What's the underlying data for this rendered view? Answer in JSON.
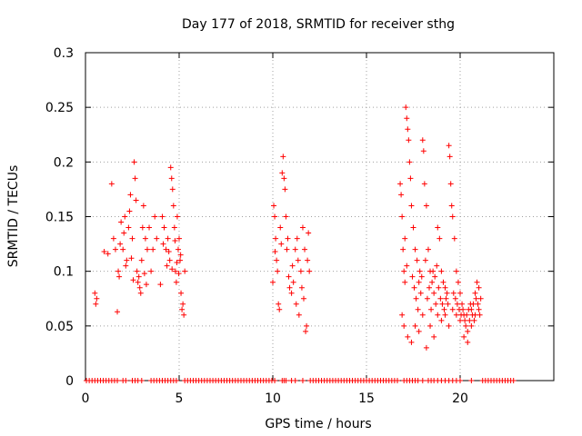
{
  "chart_data": {
    "type": "scatter",
    "title": "Day 177 of 2018, SRMTID for receiver sthg",
    "xlabel": "GPS time / hours",
    "ylabel": "SRMTID / TECUs",
    "xlim": [
      0,
      25
    ],
    "ylim": [
      0,
      0.3
    ],
    "grid": true,
    "marker": "+",
    "color": "#ff0000",
    "x_ticks": [
      0,
      5,
      10,
      15,
      20
    ],
    "x_tick_labels": [
      "0",
      "5",
      "10",
      "15",
      "20"
    ],
    "y_ticks": [
      0,
      0.05,
      0.1,
      0.15,
      0.2,
      0.25,
      0.3
    ],
    "y_tick_labels": [
      "0",
      "0.05",
      "0.1",
      "0.15",
      "0.2",
      "0.25",
      "0.3"
    ],
    "series": [
      {
        "name": "SRMTID",
        "points": [
          [
            0.5,
            0.08
          ],
          [
            0.55,
            0.07
          ],
          [
            0.6,
            0.075
          ],
          [
            1.0,
            0.118
          ],
          [
            1.2,
            0.116
          ],
          [
            1.4,
            0.18
          ],
          [
            1.5,
            0.13
          ],
          [
            1.6,
            0.12
          ],
          [
            1.7,
            0.063
          ],
          [
            1.75,
            0.1
          ],
          [
            1.8,
            0.095
          ],
          [
            1.9,
            0.145
          ],
          [
            2.0,
            0.12
          ],
          [
            2.1,
            0.15
          ],
          [
            2.2,
            0.11
          ],
          [
            2.3,
            0.14
          ],
          [
            2.4,
            0.17
          ],
          [
            2.5,
            0.13
          ],
          [
            2.6,
            0.2
          ],
          [
            2.65,
            0.185
          ],
          [
            2.7,
            0.165
          ],
          [
            2.75,
            0.1
          ],
          [
            2.8,
            0.09
          ],
          [
            2.85,
            0.095
          ],
          [
            2.9,
            0.085
          ],
          [
            2.95,
            0.08
          ],
          [
            3.0,
            0.11
          ],
          [
            3.05,
            0.14
          ],
          [
            3.1,
            0.16
          ],
          [
            3.2,
            0.13
          ],
          [
            3.3,
            0.12
          ],
          [
            3.4,
            0.14
          ],
          [
            3.5,
            0.1
          ],
          [
            3.6,
            0.12
          ],
          [
            3.7,
            0.15
          ],
          [
            3.8,
            0.13
          ],
          [
            1.85,
            0.125
          ],
          [
            2.05,
            0.135
          ],
          [
            2.15,
            0.105
          ],
          [
            2.35,
            0.155
          ],
          [
            2.45,
            0.112
          ],
          [
            2.55,
            0.092
          ],
          [
            3.15,
            0.098
          ],
          [
            3.25,
            0.088
          ],
          [
            4.0,
            0.088
          ],
          [
            4.1,
            0.15
          ],
          [
            4.2,
            0.14
          ],
          [
            4.3,
            0.12
          ],
          [
            4.4,
            0.13
          ],
          [
            4.5,
            0.11
          ],
          [
            4.55,
            0.195
          ],
          [
            4.6,
            0.185
          ],
          [
            4.65,
            0.175
          ],
          [
            4.7,
            0.16
          ],
          [
            4.75,
            0.14
          ],
          [
            4.8,
            0.1
          ],
          [
            4.85,
            0.09
          ],
          [
            4.9,
            0.15
          ],
          [
            4.95,
            0.12
          ],
          [
            5.0,
            0.13
          ],
          [
            5.05,
            0.11
          ],
          [
            5.1,
            0.08
          ],
          [
            5.15,
            0.065
          ],
          [
            5.2,
            0.07
          ],
          [
            5.25,
            0.06
          ],
          [
            5.3,
            0.1
          ],
          [
            4.15,
            0.125
          ],
          [
            4.35,
            0.105
          ],
          [
            4.45,
            0.118
          ],
          [
            4.62,
            0.102
          ],
          [
            4.78,
            0.128
          ],
          [
            4.88,
            0.108
          ],
          [
            4.98,
            0.098
          ],
          [
            5.08,
            0.115
          ],
          [
            10.0,
            0.09
          ],
          [
            10.05,
            0.16
          ],
          [
            10.1,
            0.15
          ],
          [
            10.15,
            0.13
          ],
          [
            10.2,
            0.11
          ],
          [
            10.25,
            0.1
          ],
          [
            10.3,
            0.07
          ],
          [
            10.35,
            0.065
          ],
          [
            10.4,
            0.14
          ],
          [
            10.5,
            0.19
          ],
          [
            10.55,
            0.205
          ],
          [
            10.6,
            0.185
          ],
          [
            10.65,
            0.175
          ],
          [
            10.7,
            0.15
          ],
          [
            10.75,
            0.12
          ],
          [
            10.8,
            0.13
          ],
          [
            10.9,
            0.085
          ],
          [
            11.0,
            0.08
          ],
          [
            11.1,
            0.09
          ],
          [
            11.2,
            0.12
          ],
          [
            11.3,
            0.13
          ],
          [
            11.4,
            0.06
          ],
          [
            11.5,
            0.1
          ],
          [
            11.6,
            0.14
          ],
          [
            11.7,
            0.12
          ],
          [
            11.75,
            0.045
          ],
          [
            11.8,
            0.05
          ],
          [
            11.85,
            0.11
          ],
          [
            11.9,
            0.135
          ],
          [
            11.95,
            0.1
          ],
          [
            10.12,
            0.118
          ],
          [
            10.45,
            0.125
          ],
          [
            10.85,
            0.095
          ],
          [
            11.05,
            0.105
          ],
          [
            11.25,
            0.07
          ],
          [
            11.35,
            0.11
          ],
          [
            11.55,
            0.085
          ],
          [
            11.65,
            0.075
          ],
          [
            16.8,
            0.18
          ],
          [
            16.85,
            0.17
          ],
          [
            16.9,
            0.15
          ],
          [
            16.95,
            0.12
          ],
          [
            17.0,
            0.1
          ],
          [
            17.05,
            0.09
          ],
          [
            17.1,
            0.25
          ],
          [
            17.15,
            0.24
          ],
          [
            17.2,
            0.23
          ],
          [
            17.25,
            0.22
          ],
          [
            17.3,
            0.2
          ],
          [
            17.35,
            0.185
          ],
          [
            17.4,
            0.16
          ],
          [
            17.5,
            0.14
          ],
          [
            17.6,
            0.12
          ],
          [
            17.7,
            0.11
          ],
          [
            17.8,
            0.09
          ],
          [
            17.9,
            0.08
          ],
          [
            18.0,
            0.22
          ],
          [
            18.05,
            0.21
          ],
          [
            18.1,
            0.18
          ],
          [
            18.2,
            0.16
          ],
          [
            18.3,
            0.12
          ],
          [
            18.4,
            0.1
          ],
          [
            18.5,
            0.09
          ],
          [
            18.6,
            0.08
          ],
          [
            18.7,
            0.07
          ],
          [
            18.8,
            0.14
          ],
          [
            18.9,
            0.13
          ],
          [
            19.0,
            0.1
          ],
          [
            19.1,
            0.09
          ],
          [
            19.2,
            0.085
          ],
          [
            19.3,
            0.08
          ],
          [
            19.4,
            0.215
          ],
          [
            19.45,
            0.205
          ],
          [
            19.5,
            0.18
          ],
          [
            19.55,
            0.16
          ],
          [
            19.6,
            0.15
          ],
          [
            19.7,
            0.13
          ],
          [
            19.8,
            0.1
          ],
          [
            19.9,
            0.09
          ],
          [
            20.0,
            0.08
          ],
          [
            20.1,
            0.07
          ],
          [
            20.2,
            0.06
          ],
          [
            20.3,
            0.05
          ],
          [
            20.4,
            0.045
          ],
          [
            20.5,
            0.055
          ],
          [
            20.6,
            0.065
          ],
          [
            20.7,
            0.07
          ],
          [
            20.8,
            0.08
          ],
          [
            20.9,
            0.09
          ],
          [
            21.0,
            0.085
          ],
          [
            21.1,
            0.075
          ],
          [
            16.9,
            0.06
          ],
          [
            17.0,
            0.05
          ],
          [
            17.2,
            0.04
          ],
          [
            17.4,
            0.035
          ],
          [
            17.6,
            0.05
          ],
          [
            17.8,
            0.045
          ],
          [
            18.0,
            0.06
          ],
          [
            18.2,
            0.03
          ],
          [
            18.4,
            0.05
          ],
          [
            18.6,
            0.04
          ],
          [
            18.8,
            0.06
          ],
          [
            19.0,
            0.055
          ],
          [
            19.2,
            0.06
          ],
          [
            19.4,
            0.05
          ],
          [
            19.6,
            0.065
          ],
          [
            19.8,
            0.06
          ],
          [
            20.0,
            0.055
          ],
          [
            20.2,
            0.04
          ],
          [
            20.4,
            0.035
          ],
          [
            20.6,
            0.05
          ],
          [
            20.8,
            0.06
          ],
          [
            21.0,
            0.065
          ],
          [
            17.05,
            0.13
          ],
          [
            17.15,
            0.105
          ],
          [
            17.45,
            0.095
          ],
          [
            17.55,
            0.085
          ],
          [
            17.65,
            0.075
          ],
          [
            17.75,
            0.065
          ],
          [
            17.85,
            0.1
          ],
          [
            17.95,
            0.095
          ],
          [
            18.15,
            0.11
          ],
          [
            18.25,
            0.075
          ],
          [
            18.35,
            0.085
          ],
          [
            18.45,
            0.065
          ],
          [
            18.55,
            0.1
          ],
          [
            18.65,
            0.095
          ],
          [
            18.75,
            0.105
          ],
          [
            18.85,
            0.085
          ],
          [
            18.95,
            0.075
          ],
          [
            19.05,
            0.07
          ],
          [
            19.15,
            0.065
          ],
          [
            19.25,
            0.075
          ],
          [
            19.35,
            0.07
          ],
          [
            19.65,
            0.08
          ],
          [
            19.75,
            0.075
          ],
          [
            19.85,
            0.07
          ],
          [
            19.95,
            0.065
          ],
          [
            20.05,
            0.06
          ],
          [
            20.15,
            0.065
          ],
          [
            20.25,
            0.055
          ],
          [
            20.35,
            0.06
          ],
          [
            20.45,
            0.065
          ],
          [
            20.55,
            0.07
          ],
          [
            20.65,
            0.06
          ],
          [
            20.75,
            0.055
          ],
          [
            20.85,
            0.075
          ],
          [
            20.95,
            0.07
          ],
          [
            21.05,
            0.06
          ]
        ]
      }
    ],
    "zero_points_x": [
      0.05,
      0.2,
      0.35,
      0.5,
      0.65,
      0.8,
      0.95,
      1.1,
      1.25,
      1.4,
      1.55,
      1.7,
      2.0,
      2.15,
      2.5,
      2.65,
      2.8,
      3.0,
      3.5,
      3.65,
      3.8,
      3.95,
      4.1,
      4.25,
      4.4,
      4.55,
      4.7,
      4.85,
      5.3,
      5.45,
      5.6,
      5.75,
      5.9,
      6.05,
      6.2,
      6.35,
      6.5,
      6.65,
      6.8,
      6.95,
      7.1,
      7.25,
      7.4,
      7.55,
      7.7,
      7.85,
      8.0,
      8.15,
      8.3,
      8.45,
      8.6,
      8.75,
      8.9,
      9.05,
      9.2,
      9.35,
      9.5,
      9.65,
      9.8,
      9.95,
      10.1,
      10.5,
      10.6,
      10.7,
      11.0,
      11.2,
      11.6,
      12.0,
      12.15,
      12.3,
      12.45,
      12.6,
      12.75,
      12.9,
      13.05,
      13.2,
      13.35,
      13.5,
      13.65,
      13.8,
      13.95,
      14.1,
      14.25,
      14.4,
      14.55,
      14.7,
      14.85,
      15.0,
      15.15,
      15.3,
      15.45,
      15.6,
      15.75,
      15.9,
      16.05,
      16.2,
      16.35,
      16.5,
      16.65,
      17.0,
      17.15,
      17.3,
      17.45,
      17.6,
      17.75,
      18.0,
      18.3,
      18.45,
      18.6,
      18.8,
      19.0,
      19.2,
      19.4,
      19.6,
      19.8,
      20.0,
      20.6,
      21.2,
      21.35,
      21.5,
      21.65,
      21.8,
      21.95,
      22.1,
      22.25,
      22.4,
      22.55,
      22.7,
      22.85
    ]
  }
}
